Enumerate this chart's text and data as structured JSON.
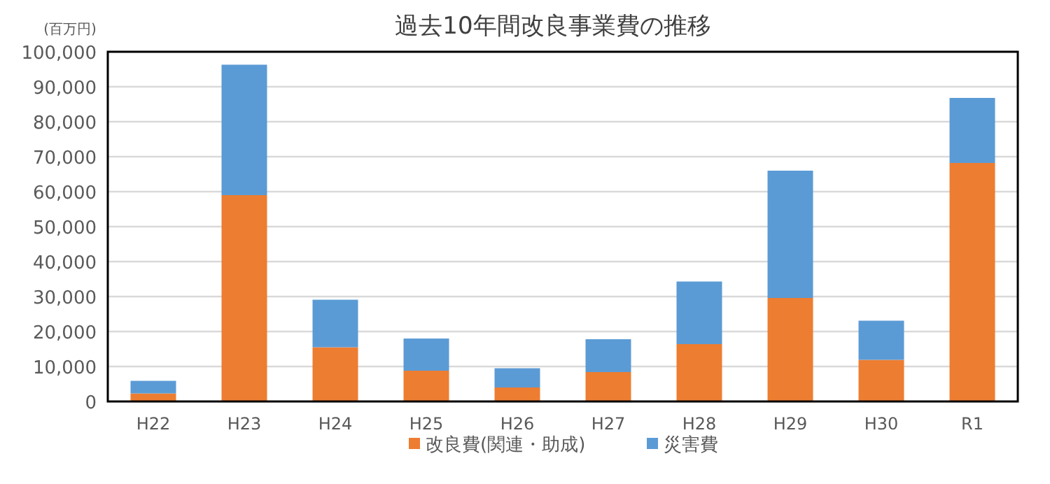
{
  "chart_data": {
    "type": "bar",
    "title": "過去10年間改良事業費の推移",
    "ylabel": "(百万円)",
    "stacked": true,
    "categories": [
      "H22",
      "H23",
      "H24",
      "H25",
      "H26",
      "H27",
      "H28",
      "H29",
      "H30",
      "R1"
    ],
    "series": [
      {
        "name": "改良費(関連・助成)",
        "color": "#ed7d31",
        "values": [
          2300,
          59000,
          15500,
          8800,
          4000,
          8400,
          16400,
          29600,
          11900,
          68200
        ]
      },
      {
        "name": "災害費",
        "color": "#5b9bd5",
        "values": [
          3600,
          37300,
          13600,
          9200,
          5500,
          9400,
          17900,
          36400,
          11200,
          18600
        ]
      }
    ],
    "ylim": [
      0,
      100000
    ],
    "yticks": [
      {
        "value": 0,
        "label": "0"
      },
      {
        "value": 10000,
        "label": "10,000"
      },
      {
        "value": 20000,
        "label": "20,000"
      },
      {
        "value": 30000,
        "label": "30,000"
      },
      {
        "value": 40000,
        "label": "40,000"
      },
      {
        "value": 50000,
        "label": "50,000"
      },
      {
        "value": 60000,
        "label": "60,000"
      },
      {
        "value": 70000,
        "label": "70,000"
      },
      {
        "value": 80000,
        "label": "80,000"
      },
      {
        "value": 90000,
        "label": "90,000"
      },
      {
        "value": 100000,
        "label": "100,000"
      }
    ],
    "grid": "y",
    "legend": "bottom"
  }
}
